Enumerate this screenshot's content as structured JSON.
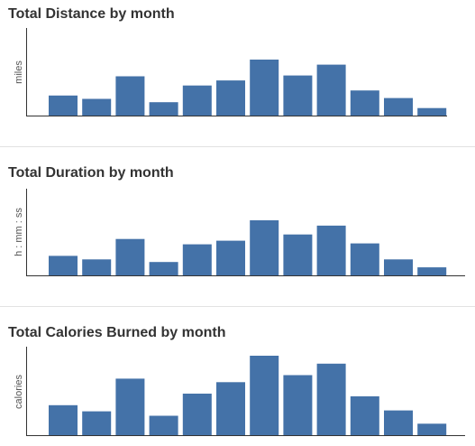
{
  "accent_color": "#4472a8",
  "chart_data": [
    {
      "type": "bar",
      "title": "Total Distance by month",
      "ylabel": "miles",
      "xlabel": "",
      "grid": false,
      "axis_ticks_shown": false,
      "series": [
        {
          "values": [
            24,
            20,
            47,
            16,
            36,
            42,
            67,
            48,
            61,
            30,
            21,
            9
          ]
        }
      ]
    },
    {
      "type": "bar",
      "title": "Total Duration by month",
      "ylabel": "h : mm : ss",
      "xlabel": "",
      "grid": false,
      "axis_ticks_shown": false,
      "series": [
        {
          "values": [
            22,
            18,
            41,
            15,
            35,
            39,
            62,
            46,
            56,
            36,
            18,
            9
          ]
        }
      ]
    },
    {
      "type": "bar",
      "title": "Total Calories Burned by month",
      "ylabel": "calories",
      "xlabel": "",
      "grid": false,
      "axis_ticks_shown": false,
      "series": [
        {
          "values": [
            34,
            27,
            64,
            22,
            47,
            60,
            90,
            68,
            81,
            44,
            28,
            13
          ]
        }
      ]
    }
  ]
}
